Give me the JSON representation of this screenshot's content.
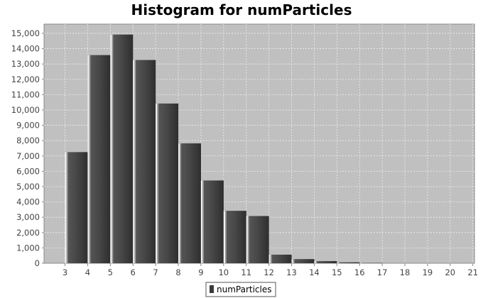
{
  "chart_data": {
    "type": "bar",
    "title": "Histogram for numParticles",
    "xlabel": "",
    "ylabel": "",
    "categories": [
      "3",
      "4",
      "5",
      "6",
      "7",
      "8",
      "9",
      "10",
      "11",
      "12",
      "13",
      "14",
      "15",
      "16",
      "17",
      "18",
      "19",
      "20",
      "21"
    ],
    "series": [
      {
        "name": "numParticles",
        "values": [
          7250,
          13580,
          14920,
          13260,
          10420,
          7820,
          5400,
          3420,
          3080,
          560,
          270,
          140,
          60,
          20,
          0,
          0,
          0,
          0,
          0
        ]
      }
    ],
    "ylim": [
      0,
      15600
    ],
    "yticks": [
      0,
      1000,
      2000,
      3000,
      4000,
      5000,
      6000,
      7000,
      8000,
      9000,
      10000,
      11000,
      12000,
      13000,
      14000,
      15000
    ],
    "ytick_labels": [
      "0",
      "1,000",
      "2,000",
      "3,000",
      "4,000",
      "5,000",
      "6,000",
      "7,000",
      "8,000",
      "9,000",
      "10,000",
      "11,000",
      "12,000",
      "13,000",
      "14,000",
      "15,000"
    ],
    "grid": true,
    "legend": "bottom-center",
    "colors": {
      "plot_bg": "#c0c0c0",
      "bar": "#4a4a4a",
      "bar_dark": "#2c2c2c",
      "bar_highlight": "#f0f0f0",
      "grid": "#eeeeee"
    }
  }
}
